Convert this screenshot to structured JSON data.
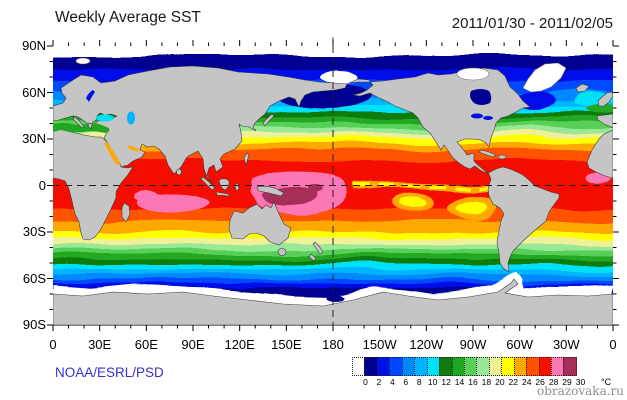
{
  "header": {
    "title": "Weekly Average SST",
    "date_range": "2011/01/30 - 2011/02/05"
  },
  "footer": {
    "source": "NOAA/ESRL/PSD",
    "watermark": "obrazovaka.ru"
  },
  "chart_data": {
    "type": "heatmap",
    "title": "Weekly Average SST",
    "date_range": "2011/01/30 - 2011/02/05",
    "projection": "equirectangular world map, Pacific-centered (left edge 0E eastward to right edge 0E)",
    "x_ticks": [
      "0",
      "30E",
      "60E",
      "90E",
      "120E",
      "150E",
      "180",
      "150W",
      "120W",
      "90W",
      "60W",
      "30W",
      "0"
    ],
    "y_ticks": [
      "90N",
      "60N",
      "30N",
      "0",
      "30S",
      "60S",
      "90S"
    ],
    "grid_lines": [
      "equator 0 dashed horizontal line",
      "180 meridian dashed vertical line"
    ],
    "land_color": "#c5c5c5",
    "ice_color": "#ffffff",
    "colorbar": {
      "unit": "°C",
      "levels": [
        0,
        2,
        4,
        6,
        8,
        10,
        12,
        14,
        16,
        18,
        20,
        22,
        24,
        26,
        28,
        29,
        30
      ],
      "tick_labels": [
        "0",
        "2",
        "4",
        "6",
        "8",
        "10",
        "12",
        "14",
        "16",
        "18",
        "20",
        "22",
        "24",
        "26",
        "28",
        "29",
        "30"
      ],
      "colors": [
        "#ffffff",
        "#000092",
        "#0010e8",
        "#0048ff",
        "#0088ff",
        "#00b4ff",
        "#00e0f8",
        "#107c10",
        "#20a820",
        "#58d058",
        "#98e898",
        "#f0f098",
        "#ffff00",
        "#ffa800",
        "#ff5200",
        "#f51000",
        "#fc78b4",
        "#a82d5a"
      ]
    },
    "zonal_bands": [
      {
        "lat_from": 90,
        "lat_to": 77,
        "sst_c": "<0 ice",
        "color_index": 0
      },
      {
        "lat_from": 77,
        "lat_to": 69,
        "sst_c": "0-2",
        "color_index": 1
      },
      {
        "lat_from": 69,
        "lat_to": 62,
        "sst_c": "2-4",
        "color_index": 2
      },
      {
        "lat_from": 62,
        "lat_to": 56,
        "sst_c": "4-6",
        "color_index": 3
      },
      {
        "lat_from": 56,
        "lat_to": 51,
        "sst_c": "6-8",
        "color_index": 4
      },
      {
        "lat_from": 51,
        "lat_to": 47,
        "sst_c": "8-10",
        "color_index": 5
      },
      {
        "lat_from": 47,
        "lat_to": 43.5,
        "sst_c": "10-12",
        "color_index": 6
      },
      {
        "lat_from": 43.5,
        "lat_to": 40.5,
        "sst_c": "12-14",
        "color_index": 7
      },
      {
        "lat_from": 40.5,
        "lat_to": 37.5,
        "sst_c": "14-16",
        "color_index": 8
      },
      {
        "lat_from": 37.5,
        "lat_to": 34.5,
        "sst_c": "16-18",
        "color_index": 9
      },
      {
        "lat_from": 34.5,
        "lat_to": 31.5,
        "sst_c": "18-20",
        "color_index": 10
      },
      {
        "lat_from": 31.5,
        "lat_to": 28.5,
        "sst_c": "20-22",
        "color_index": 11
      },
      {
        "lat_from": 28.5,
        "lat_to": 25,
        "sst_c": "22-24",
        "color_index": 12
      },
      {
        "lat_from": 25,
        "lat_to": 21,
        "sst_c": "24-26",
        "color_index": 13
      },
      {
        "lat_from": 21,
        "lat_to": 15,
        "sst_c": "26-28",
        "color_index": 14
      },
      {
        "lat_from": 15,
        "lat_to": -14,
        "sst_c": "28-29",
        "color_index": 15
      },
      {
        "lat_from": -14,
        "lat_to": -21,
        "sst_c": "26-28",
        "color_index": 14
      },
      {
        "lat_from": -21,
        "lat_to": -27,
        "sst_c": "24-26",
        "color_index": 13
      },
      {
        "lat_from": -27,
        "lat_to": -31,
        "sst_c": "22-24",
        "color_index": 12
      },
      {
        "lat_from": -31,
        "lat_to": -35,
        "sst_c": "20-22",
        "color_index": 11
      },
      {
        "lat_from": -35,
        "lat_to": -38,
        "sst_c": "18-20",
        "color_index": 10
      },
      {
        "lat_from": -38,
        "lat_to": -41,
        "sst_c": "16-18",
        "color_index": 9
      },
      {
        "lat_from": -41,
        "lat_to": -44,
        "sst_c": "14-16",
        "color_index": 8
      },
      {
        "lat_from": -44,
        "lat_to": -47,
        "sst_c": "12-14",
        "color_index": 7
      },
      {
        "lat_from": -47,
        "lat_to": -50,
        "sst_c": "10-12",
        "color_index": 6
      },
      {
        "lat_from": -50,
        "lat_to": -53,
        "sst_c": "8-10",
        "color_index": 5
      },
      {
        "lat_from": -53,
        "lat_to": -56,
        "sst_c": "6-8",
        "color_index": 4
      },
      {
        "lat_from": -56,
        "lat_to": -58.5,
        "sst_c": "4-6",
        "color_index": 3
      },
      {
        "lat_from": -58.5,
        "lat_to": -61,
        "sst_c": "2-4",
        "color_index": 2
      },
      {
        "lat_from": -61,
        "lat_to": -67,
        "sst_c": "0-2",
        "color_index": 1
      },
      {
        "lat_from": -67,
        "lat_to": -90,
        "sst_c": "<0 sea ice / Antarctica",
        "color_index": 0
      }
    ],
    "features": [
      {
        "name": "western_pacific_warm_pool",
        "sst_c": "29-30",
        "region": "Indonesia / W. Pacific, 10N-20S"
      },
      {
        "name": "warm_pool_core",
        "sst_c": ">30",
        "region": "135E-165E, 2S-12S"
      },
      {
        "name": "indian_ocean_warm_patch",
        "sst_c": "29-30",
        "region": "55E-100E, 4S-17S"
      },
      {
        "name": "equatorial_atlantic_warm_patch",
        "sst_c": "29-30",
        "region": "17W-1W near equator"
      },
      {
        "name": "equatorial_pacific_cold_tongue",
        "sst_c": "22-26 (La Nina)",
        "region": "along equator 180-90W"
      },
      {
        "name": "mediterranean_sea",
        "sst_c": "14-16",
        "region": "green"
      },
      {
        "name": "red_sea_persian_gulf",
        "sst_c": "24-26",
        "region": "orange"
      },
      {
        "name": "hudson_bay",
        "sst_c": "0-2",
        "region": "navy"
      },
      {
        "name": "sea_ice_margin",
        "sst_c": "<0",
        "region": "Arctic and ~65S-70S Southern Ocean"
      }
    ]
  }
}
